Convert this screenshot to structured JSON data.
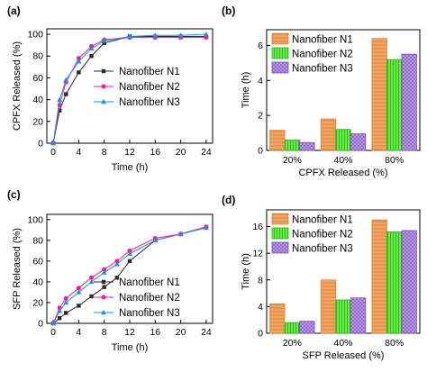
{
  "colors": {
    "n1": "#2b2b2b",
    "n2": "#ff1a8c",
    "n3": "#1f8fe6",
    "bar_n1": "#f4a460",
    "bar_n2": "#66ee44",
    "bar_n3": "#b48ee0"
  },
  "chart_data": [
    {
      "panel": "(a)",
      "type": "line",
      "xlabel": "Time (h)",
      "ylabel": "CPFX Released (%)",
      "xlim": [
        -1,
        25
      ],
      "ylim": [
        0,
        105
      ],
      "xticks": [
        0,
        4,
        8,
        12,
        16,
        20,
        24
      ],
      "yticks": [
        0,
        20,
        40,
        60,
        80,
        100
      ],
      "legend": "right-middle",
      "grid": false,
      "series": [
        {
          "name": "Nanofiber N1",
          "marker": "square",
          "x": [
            0,
            1,
            2,
            4,
            6,
            8,
            12,
            16,
            20,
            24
          ],
          "y": [
            0,
            30,
            45,
            65,
            80,
            92,
            98,
            98,
            98,
            98
          ]
        },
        {
          "name": "Nanofiber N2",
          "marker": "circle",
          "x": [
            0,
            1,
            2,
            4,
            6,
            8,
            12,
            16,
            20,
            24
          ],
          "y": [
            0,
            35,
            56,
            78,
            89,
            95,
            97,
            97,
            97,
            97
          ]
        },
        {
          "name": "Nanofiber N3",
          "marker": "triangle",
          "x": [
            0,
            1,
            2,
            4,
            6,
            8,
            12,
            16,
            20,
            24
          ],
          "y": [
            0,
            40,
            58,
            75,
            87,
            94,
            98,
            99,
            99,
            100
          ]
        }
      ]
    },
    {
      "panel": "(b)",
      "type": "bar",
      "xlabel": "CPFX Released (%)",
      "ylabel": "Time (h)",
      "categories": [
        "20%",
        "40%",
        "80%"
      ],
      "ylim": [
        0,
        6.9
      ],
      "yticks": [
        0,
        2,
        4,
        6
      ],
      "legend": "top-left",
      "series": [
        {
          "name": "Nanofiber N1",
          "values": [
            1.15,
            1.8,
            6.4
          ]
        },
        {
          "name": "Nanofiber N2",
          "values": [
            0.6,
            1.2,
            5.2
          ]
        },
        {
          "name": "Nanofiber N3",
          "values": [
            0.45,
            0.95,
            5.5
          ]
        }
      ]
    },
    {
      "panel": "(c)",
      "type": "line",
      "xlabel": "Time (h)",
      "ylabel": "SFP Released (%)",
      "xlim": [
        -1,
        25
      ],
      "ylim": [
        0,
        105
      ],
      "xticks": [
        0,
        4,
        8,
        12,
        16,
        20,
        24
      ],
      "yticks": [
        0,
        20,
        40,
        60,
        80,
        100
      ],
      "legend": "right-bottom",
      "grid": false,
      "series": [
        {
          "name": "Nanofiber N1",
          "marker": "square",
          "x": [
            0,
            1,
            2,
            4,
            6,
            8,
            10,
            12,
            16,
            20,
            24
          ],
          "y": [
            0,
            5,
            10,
            17,
            26,
            35,
            44,
            60,
            80,
            86,
            93
          ]
        },
        {
          "name": "Nanofiber N2",
          "marker": "circle",
          "x": [
            0,
            1,
            2,
            4,
            6,
            8,
            10,
            12,
            16,
            20,
            24
          ],
          "y": [
            0,
            15,
            24,
            34,
            44,
            52,
            60,
            70,
            82,
            86,
            93
          ]
        },
        {
          "name": "Nanofiber N3",
          "marker": "triangle",
          "x": [
            0,
            1,
            2,
            4,
            6,
            8,
            10,
            12,
            16,
            20,
            24
          ],
          "y": [
            0,
            12,
            20,
            30,
            40,
            49,
            57,
            67,
            80,
            86,
            92
          ]
        }
      ]
    },
    {
      "panel": "(d)",
      "type": "bar",
      "xlabel": "SFP Released (%)",
      "ylabel": "Time (h)",
      "categories": [
        "20%",
        "40%",
        "80%"
      ],
      "ylim": [
        0,
        18.5
      ],
      "yticks": [
        0,
        4,
        8,
        12,
        16
      ],
      "legend": "top-left",
      "series": [
        {
          "name": "Nanofiber N1",
          "values": [
            4.4,
            8.0,
            17.0
          ]
        },
        {
          "name": "Nanofiber N2",
          "values": [
            1.6,
            5.0,
            15.2
          ]
        },
        {
          "name": "Nanofiber N3",
          "values": [
            1.8,
            5.3,
            15.4
          ]
        }
      ]
    }
  ]
}
